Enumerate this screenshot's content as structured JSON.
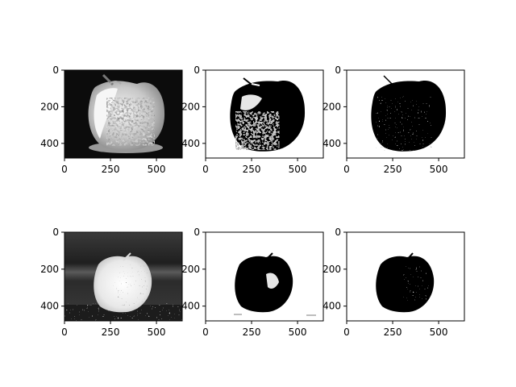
{
  "figure": {
    "panels": [
      {
        "row": 1,
        "col": 1,
        "description": "grayscale apple, dark background",
        "palette": "gray",
        "x_ticks": [
          "0",
          "250",
          "500"
        ],
        "y_ticks": [
          "0",
          "200",
          "400"
        ]
      },
      {
        "row": 1,
        "col": 2,
        "description": "binary threshold of apple",
        "palette": "binary",
        "x_ticks": [
          "0",
          "250",
          "500"
        ],
        "y_ticks": [
          "0",
          "200",
          "400"
        ]
      },
      {
        "row": 1,
        "col": 3,
        "description": "adaptive threshold of apple",
        "palette": "binary",
        "x_ticks": [
          "0",
          "250",
          "500"
        ],
        "y_ticks": [
          "0",
          "200",
          "400"
        ]
      },
      {
        "row": 2,
        "col": 1,
        "description": "grayscale apple on table",
        "palette": "gray",
        "x_ticks": [
          "0",
          "250",
          "500"
        ],
        "y_ticks": [
          "0",
          "200",
          "400"
        ]
      },
      {
        "row": 2,
        "col": 2,
        "description": "binary threshold of apple",
        "palette": "binary",
        "x_ticks": [
          "0",
          "250",
          "500"
        ],
        "y_ticks": [
          "0",
          "200",
          "400"
        ]
      },
      {
        "row": 2,
        "col": 3,
        "description": "adaptive threshold of apple",
        "palette": "binary",
        "x_ticks": [
          "0",
          "250",
          "500"
        ],
        "y_ticks": [
          "0",
          "200",
          "400"
        ]
      }
    ],
    "image_extent": {
      "width": 640,
      "height": 480
    },
    "colors": {
      "axes": "#000000",
      "background": "#ffffff",
      "ink": "#000000"
    }
  }
}
